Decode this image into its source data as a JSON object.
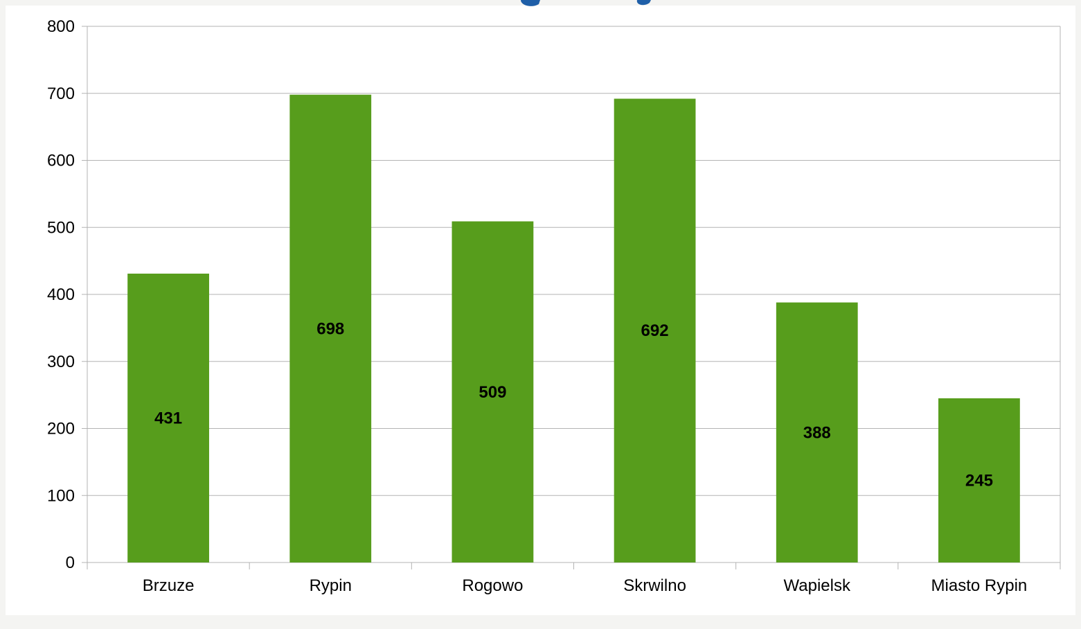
{
  "chart_data": {
    "type": "bar",
    "categories": [
      "Brzuze",
      "Rypin",
      "Rogowo",
      "Skrwilno",
      "Wapielsk",
      "Miasto Rypin"
    ],
    "values": [
      431,
      698,
      509,
      692,
      388,
      245
    ],
    "data_labels": [
      "431",
      "698",
      "509",
      "692",
      "388",
      "245"
    ],
    "y_ticks": [
      "0",
      "100",
      "200",
      "300",
      "400",
      "500",
      "600",
      "700",
      "800"
    ],
    "ylim": [
      0,
      800
    ],
    "grid": true,
    "legend": "none",
    "bar_color": "#579d1c",
    "grid_color": "#b3b3b3",
    "title_color": "#1f5fa8"
  }
}
